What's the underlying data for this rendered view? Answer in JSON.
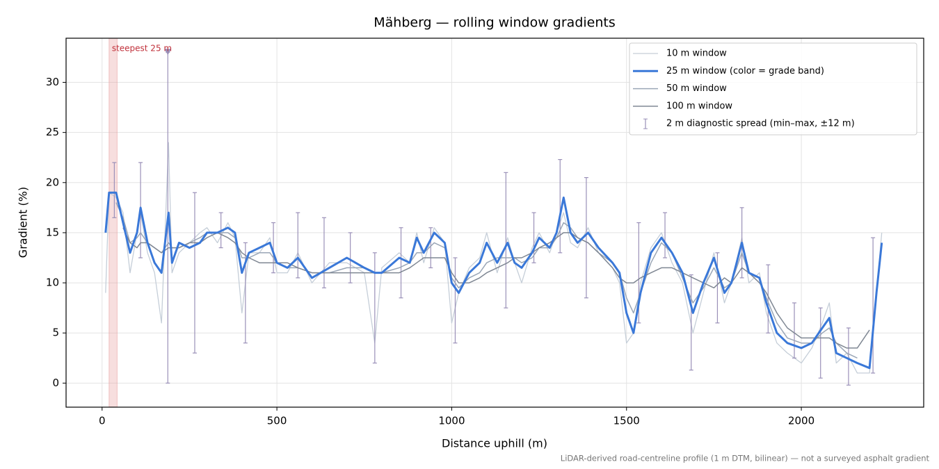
{
  "chart_data": {
    "type": "line",
    "title": "Mähberg — rolling window gradients",
    "x_label": "Distance uphill (m)",
    "y_label": "Gradient (%)",
    "footnote": "LiDAR-derived road-centreline profile (1 m DTM, bilinear) — not a surveyed asphalt gradient",
    "xlim": [
      -103,
      2350
    ],
    "ylim": [
      -2.4,
      34.4
    ],
    "xticks": [
      0,
      500,
      1000,
      1500,
      2000
    ],
    "yticks": [
      0,
      5,
      10,
      15,
      20,
      25,
      30
    ],
    "grid": true,
    "legend": "upper right",
    "x": [
      10,
      20,
      40,
      60,
      80,
      100,
      110,
      130,
      150,
      170,
      190,
      200,
      220,
      250,
      280,
      300,
      330,
      360,
      380,
      400,
      420,
      450,
      480,
      500,
      530,
      560,
      600,
      650,
      700,
      750,
      780,
      800,
      850,
      880,
      900,
      920,
      950,
      980,
      1000,
      1020,
      1050,
      1080,
      1100,
      1130,
      1160,
      1180,
      1200,
      1230,
      1250,
      1280,
      1300,
      1320,
      1340,
      1360,
      1390,
      1420,
      1460,
      1480,
      1500,
      1520,
      1540,
      1570,
      1600,
      1630,
      1660,
      1690,
      1720,
      1750,
      1780,
      1800,
      1830,
      1850,
      1880,
      1900,
      1930,
      1960,
      2000,
      2030,
      2060,
      2080,
      2100,
      2130,
      2160,
      2195,
      2215,
      2230
    ],
    "series": [
      {
        "name": "10 m window",
        "color": "#c5ced8",
        "width": 1.3,
        "values": [
          9,
          19,
          18.5,
          17,
          11,
          15,
          17,
          13,
          11,
          6,
          24,
          11,
          13,
          14,
          15,
          15.5,
          14,
          16,
          14.5,
          7,
          13,
          13,
          14.5,
          11,
          11,
          13,
          10,
          12,
          12,
          11,
          4,
          11.5,
          13,
          12,
          15,
          12,
          15.5,
          14,
          6,
          9,
          11.5,
          12.5,
          15,
          11,
          14.5,
          12,
          10,
          13.5,
          15,
          13,
          15,
          17,
          14,
          13.5,
          15.5,
          13,
          11.5,
          10,
          4,
          5,
          10,
          13.5,
          15,
          12,
          10,
          5,
          9,
          13,
          8,
          10,
          14.5,
          10,
          11,
          7,
          4,
          3,
          2,
          3.5,
          6,
          8,
          2,
          3,
          1,
          1,
          9,
          15
        ]
      },
      {
        "name": "25 m window (color = grade band)",
        "color": "#3a78d8",
        "width": 3,
        "values": [
          15,
          19,
          19,
          16,
          13,
          15,
          17.5,
          14,
          12,
          11,
          17,
          12,
          14,
          13.5,
          14,
          15,
          15,
          15.5,
          15,
          11,
          13,
          13.5,
          14,
          12,
          11.5,
          12.5,
          10.5,
          11.5,
          12.5,
          11.5,
          11,
          11,
          12.5,
          12,
          14.5,
          13,
          15,
          14,
          10,
          9,
          11,
          12,
          14,
          12,
          14,
          12,
          11.5,
          13,
          14.5,
          13.5,
          15,
          18.5,
          15,
          14,
          15,
          13.5,
          12,
          11,
          7,
          5,
          9,
          13,
          14.5,
          13,
          11,
          7,
          10,
          12.5,
          9,
          10,
          14,
          11,
          10.5,
          8,
          5,
          4,
          3.5,
          4,
          5.5,
          6.5,
          3,
          2.5,
          2,
          1.5,
          9,
          14
        ]
      },
      {
        "name": "50 m window",
        "color": "#9aa6b6",
        "width": 1.5,
        "values": [
          null,
          null,
          18,
          16.5,
          14,
          14.5,
          15,
          14,
          13.5,
          13,
          14,
          13.5,
          13.5,
          14,
          14.5,
          15,
          15,
          15,
          14.5,
          12.5,
          12.5,
          13,
          13,
          12,
          11.5,
          11.5,
          11,
          11,
          11.5,
          11.5,
          11,
          11,
          11.5,
          12,
          13,
          13,
          14,
          13.5,
          10.5,
          9.5,
          10.5,
          11,
          12,
          12.5,
          12.5,
          12.5,
          12,
          12.5,
          13.5,
          13.5,
          14.5,
          16,
          15.5,
          14.5,
          14,
          13,
          12,
          11,
          8.5,
          7,
          9,
          12,
          14,
          13,
          10.5,
          8,
          9.5,
          11.5,
          9.5,
          10,
          13,
          11,
          10.5,
          8.5,
          6,
          4.5,
          4,
          4,
          5,
          5.5,
          4,
          3,
          2.5,
          null,
          null,
          null
        ]
      },
      {
        "name": "100 m window",
        "color": "#7f8793",
        "width": 1.5,
        "values": [
          null,
          null,
          null,
          15.5,
          14,
          13.5,
          14,
          14,
          13.5,
          13,
          13.5,
          13.5,
          13.5,
          14,
          14,
          14.5,
          15,
          14.5,
          14,
          13,
          12.5,
          12,
          12,
          12,
          12,
          11.5,
          11,
          11,
          11,
          11,
          11,
          11,
          11,
          11.5,
          12,
          12.5,
          12.5,
          12.5,
          11,
          10,
          10,
          10.5,
          11,
          11.5,
          12,
          12.5,
          12.5,
          13,
          13.5,
          14,
          14.5,
          15,
          15,
          14.5,
          14,
          13,
          11.5,
          10.5,
          10,
          10,
          10.5,
          11,
          11.5,
          11.5,
          11,
          10.5,
          10,
          9.5,
          10.5,
          10,
          11.5,
          11,
          10,
          9,
          7,
          5.5,
          4.5,
          4.5,
          4.5,
          4.5,
          4,
          3.5,
          3.5,
          5.3,
          null,
          null
        ]
      }
    ],
    "spread": {
      "name": "2 m diagnostic spread (min–max, ±12 m)",
      "color": "#9a90b8",
      "x": [
        35,
        110,
        188,
        265,
        340,
        410,
        490,
        560,
        635,
        710,
        780,
        855,
        940,
        1010,
        1155,
        1235,
        1310,
        1385,
        1535,
        1610,
        1685,
        1760,
        1830,
        1905,
        1980,
        2055,
        2135,
        2205
      ],
      "min": [
        16.5,
        12.5,
        0,
        3,
        13.5,
        4,
        11,
        10.5,
        9.5,
        10,
        2,
        8.5,
        11.5,
        4,
        7.5,
        12,
        13,
        8.5,
        6,
        12.5,
        1.3,
        6,
        10.5,
        5,
        2.5,
        0.5,
        -0.2,
        1
      ],
      "max": [
        22,
        22,
        33,
        19,
        17,
        14,
        16,
        17,
        16.5,
        15,
        13,
        15.5,
        15.5,
        12.5,
        21,
        17,
        22.3,
        20.5,
        16,
        17,
        10.8,
        13,
        17.5,
        11.8,
        8,
        7.5,
        5.5,
        14.5
      ]
    },
    "span": {
      "x": [
        20,
        43
      ],
      "color": "#e8a0a0"
    },
    "annotation": {
      "text": "steepest 25 m",
      "x": 188,
      "y": 33,
      "color": "#c0303a"
    }
  }
}
